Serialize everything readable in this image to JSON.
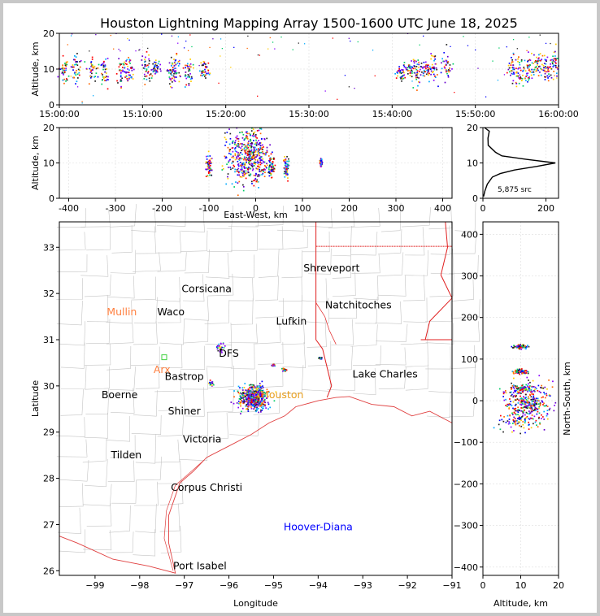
{
  "title": "Houston Lightning Mapping Array 1500-1600 UTC June 18, 2025",
  "chart_data": [
    {
      "panel": "altitude-time",
      "type": "scatter",
      "ylabel": "Altitude, km",
      "xlim": [
        "15:00:00",
        "16:00:00"
      ],
      "ylim": [
        0,
        20
      ],
      "x_ticks": [
        "15:00:00",
        "15:10:00",
        "15:20:00",
        "15:30:00",
        "15:40:00",
        "15:50:00",
        "16:00:00"
      ],
      "y_ticks": [
        0,
        10,
        20
      ],
      "clusters": [
        {
          "time": "15:00:30",
          "alt_center": 10,
          "alt_spread": 2
        },
        {
          "time": "15:02:00",
          "alt_center": 10,
          "alt_spread": 2
        },
        {
          "time": "15:04:00",
          "alt_center": 10,
          "alt_spread": 2
        },
        {
          "time": "15:05:30",
          "alt_center": 9,
          "alt_spread": 2
        },
        {
          "time": "15:07:30",
          "alt_center": 9,
          "alt_spread": 2
        },
        {
          "time": "15:08:30",
          "alt_center": 9,
          "alt_spread": 2
        },
        {
          "time": "15:10:30",
          "alt_center": 10,
          "alt_spread": 2
        },
        {
          "time": "15:11:30",
          "alt_center": 10,
          "alt_spread": 1
        },
        {
          "time": "15:13:30",
          "alt_center": 9,
          "alt_spread": 2
        },
        {
          "time": "15:14:00",
          "alt_center": 10,
          "alt_spread": 2
        },
        {
          "time": "15:15:30",
          "alt_center": 9,
          "alt_spread": 2
        },
        {
          "time": "15:17:30",
          "alt_center": 10,
          "alt_spread": 1
        },
        {
          "time": "15:41:00",
          "alt_center": 9,
          "alt_spread": 1
        },
        {
          "time": "15:42:00",
          "alt_center": 10,
          "alt_spread": 1
        },
        {
          "time": "15:43:00",
          "alt_center": 9,
          "alt_spread": 2
        },
        {
          "time": "15:44:00",
          "alt_center": 10,
          "alt_spread": 1
        },
        {
          "time": "15:45:00",
          "alt_center": 10,
          "alt_spread": 2
        },
        {
          "time": "15:46:30",
          "alt_center": 11,
          "alt_spread": 2
        },
        {
          "time": "15:54:30",
          "alt_center": 10,
          "alt_spread": 2
        },
        {
          "time": "15:55:30",
          "alt_center": 10,
          "alt_spread": 2
        },
        {
          "time": "15:56:30",
          "alt_center": 10,
          "alt_spread": 2
        },
        {
          "time": "15:57:30",
          "alt_center": 11,
          "alt_spread": 2
        },
        {
          "time": "15:58:30",
          "alt_center": 10,
          "alt_spread": 2
        },
        {
          "time": "15:59:30",
          "alt_center": 11,
          "alt_spread": 2
        }
      ]
    },
    {
      "panel": "ew-altitude",
      "type": "scatter",
      "xlabel": "East-West, km",
      "ylabel": "Altitude, km",
      "xlim": [
        -420,
        420
      ],
      "ylim": [
        0,
        20
      ],
      "x_ticks": [
        -400,
        -300,
        -200,
        -100,
        0,
        100,
        200,
        300,
        400
      ],
      "y_ticks": [
        0,
        10,
        20
      ],
      "clusters": [
        {
          "x": -100,
          "x_spread": 6,
          "alt_center": 9,
          "alt_spread": 3
        },
        {
          "x": -30,
          "x_spread": 30,
          "alt_center": 12,
          "alt_spread": 8
        },
        {
          "x": 0,
          "x_spread": 22,
          "alt_center": 12,
          "alt_spread": 8
        },
        {
          "x": 35,
          "x_spread": 5,
          "alt_center": 9,
          "alt_spread": 3
        },
        {
          "x": 65,
          "x_spread": 6,
          "alt_center": 9,
          "alt_spread": 3
        },
        {
          "x": 140,
          "x_spread": 2,
          "alt_center": 10,
          "alt_spread": 1
        }
      ]
    },
    {
      "panel": "altitude-histogram",
      "type": "line",
      "xlim": [
        0,
        240
      ],
      "ylim": [
        0,
        20
      ],
      "x_ticks": [
        0,
        200
      ],
      "y_ticks": [
        0,
        10,
        20
      ],
      "annotation": "5,875 src",
      "profile": [
        {
          "alt": 0.5,
          "count": 2
        },
        {
          "alt": 2,
          "count": 6
        },
        {
          "alt": 4,
          "count": 14
        },
        {
          "alt": 6,
          "count": 30
        },
        {
          "alt": 7,
          "count": 55
        },
        {
          "alt": 8,
          "count": 100
        },
        {
          "alt": 9,
          "count": 170
        },
        {
          "alt": 10,
          "count": 230
        },
        {
          "alt": 11,
          "count": 140
        },
        {
          "alt": 12,
          "count": 60
        },
        {
          "alt": 13,
          "count": 40
        },
        {
          "alt": 15,
          "count": 20
        },
        {
          "alt": 17,
          "count": 15
        },
        {
          "alt": 19,
          "count": 20
        },
        {
          "alt": 20,
          "count": 5
        }
      ]
    },
    {
      "panel": "map",
      "type": "scatter",
      "xlabel": "Longitude",
      "ylabel": "Latitude",
      "xlim": [
        -99.8,
        -91.0
      ],
      "ylim": [
        25.9,
        33.55
      ],
      "x_ticks": [
        -99,
        -98,
        -97,
        -96,
        -95,
        -94,
        -93,
        -92,
        -91
      ],
      "y_ticks": [
        26,
        27,
        28,
        29,
        30,
        31,
        32,
        33
      ],
      "cities": [
        {
          "name": "Shreveport",
          "lon": -93.7,
          "lat": 32.55,
          "color": "#000000"
        },
        {
          "name": "Corsicana",
          "lon": -96.5,
          "lat": 32.1,
          "color": "#000000"
        },
        {
          "name": "Natchitoches",
          "lon": -93.1,
          "lat": 31.75,
          "color": "#000000"
        },
        {
          "name": "Mullin",
          "lon": -98.4,
          "lat": 31.6,
          "color": "#ff8040"
        },
        {
          "name": "Waco",
          "lon": -97.3,
          "lat": 31.6,
          "color": "#000000"
        },
        {
          "name": "Lufkin",
          "lon": -94.6,
          "lat": 31.4,
          "color": "#000000"
        },
        {
          "name": "DFS",
          "lon": -96.0,
          "lat": 30.7,
          "color": "#000000"
        },
        {
          "name": "Arx",
          "lon": -97.5,
          "lat": 30.35,
          "color": "#ff8040"
        },
        {
          "name": "Bastrop",
          "lon": -97.0,
          "lat": 30.2,
          "color": "#000000"
        },
        {
          "name": "Lake Charles",
          "lon": -92.5,
          "lat": 30.25,
          "color": "#000000"
        },
        {
          "name": "Boerne",
          "lon": -98.45,
          "lat": 29.8,
          "color": "#000000"
        },
        {
          "name": "Houston",
          "lon": -94.8,
          "lat": 29.8,
          "color": "#e8a020"
        },
        {
          "name": "Shiner",
          "lon": -97.0,
          "lat": 29.45,
          "color": "#000000"
        },
        {
          "name": "Victoria",
          "lon": -96.6,
          "lat": 28.85,
          "color": "#000000"
        },
        {
          "name": "Tilden",
          "lon": -98.3,
          "lat": 28.5,
          "color": "#000000"
        },
        {
          "name": "Corpus Christi",
          "lon": -96.5,
          "lat": 27.8,
          "color": "#000000"
        },
        {
          "name": "Hoover-Diana",
          "lon": -94.0,
          "lat": 26.95,
          "color": "#0000ff"
        },
        {
          "name": "Port Isabel",
          "lon": -96.65,
          "lat": 26.1,
          "color": "#000000"
        }
      ],
      "clusters": [
        {
          "lon": -95.45,
          "lat": 29.75,
          "lon_spread": 0.3,
          "lat_spread": 0.25
        },
        {
          "lon": -96.2,
          "lat": 30.85,
          "lon_spread": 0.08,
          "lat_spread": 0.1
        },
        {
          "lon": -96.4,
          "lat": 30.05,
          "lon_spread": 0.05,
          "lat_spread": 0.05
        },
        {
          "lon": -94.75,
          "lat": 30.35,
          "lon_spread": 0.05,
          "lat_spread": 0.04
        },
        {
          "lon": -95.0,
          "lat": 30.45,
          "lon_spread": 0.03,
          "lat_spread": 0.03
        },
        {
          "lon": -93.95,
          "lat": 30.6,
          "lon_spread": 0.03,
          "lat_spread": 0.02
        }
      ]
    },
    {
      "panel": "altitude-ns",
      "type": "scatter",
      "xlabel": "Altitude, km",
      "ylabel": "North-South, km",
      "xlim": [
        0,
        20
      ],
      "ylim": [
        -420,
        430
      ],
      "x_ticks": [
        0,
        10,
        20
      ],
      "y_ticks": [
        -400,
        -300,
        -200,
        -100,
        0,
        100,
        200,
        300,
        400
      ],
      "clusters": [
        {
          "y": 130,
          "y_spread": 4,
          "alt_center": 10,
          "alt_spread": 2
        },
        {
          "y": 70,
          "y_spread": 6,
          "alt_center": 10,
          "alt_spread": 2
        },
        {
          "y": 30,
          "y_spread": 8,
          "alt_center": 10,
          "alt_spread": 3
        },
        {
          "y": 0,
          "y_spread": 40,
          "alt_center": 12,
          "alt_spread": 6
        },
        {
          "y": -50,
          "y_spread": 20,
          "alt_center": 10,
          "alt_spread": 6
        }
      ]
    }
  ]
}
